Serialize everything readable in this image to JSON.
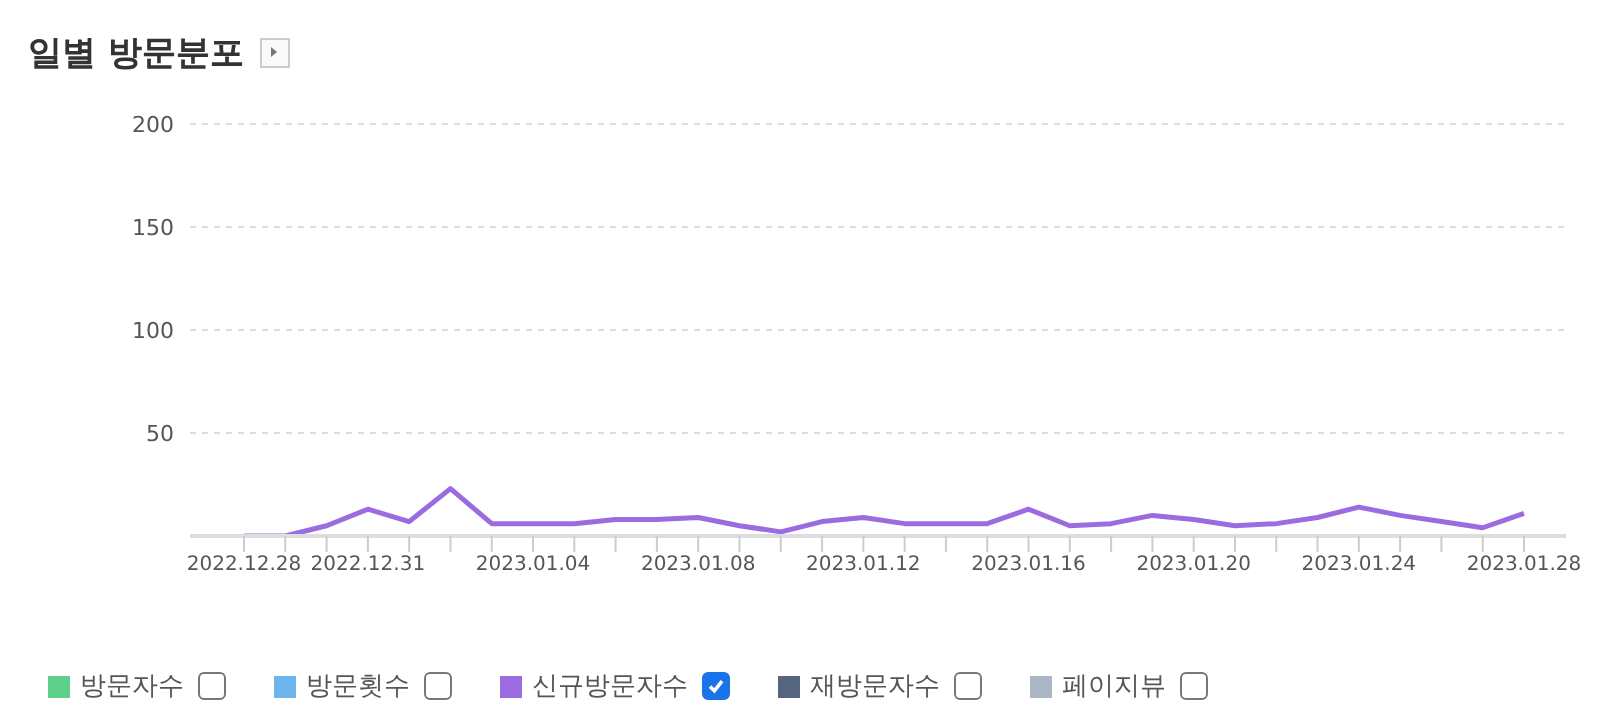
{
  "chart_data": {
    "type": "line",
    "title": "일별 방문분포",
    "categories": [
      "2022.12.28",
      null,
      null,
      "2022.12.31",
      null,
      null,
      null,
      "2023.01.04",
      null,
      null,
      null,
      "2023.01.08",
      null,
      null,
      null,
      "2023.01.12",
      null,
      null,
      null,
      "2023.01.16",
      null,
      null,
      null,
      "2023.01.20",
      null,
      null,
      null,
      "2023.01.24",
      null,
      null,
      null,
      "2023.01.28"
    ],
    "series": [
      {
        "name": "방문자수",
        "color": "#5dcf88",
        "values": [
          null,
          null,
          null,
          null,
          null,
          null,
          null,
          null,
          null,
          null,
          null,
          null,
          null,
          null,
          null,
          null,
          null,
          null,
          null,
          null,
          null,
          null,
          null,
          null,
          null,
          null,
          null,
          null,
          null,
          null,
          null,
          null
        ]
      },
      {
        "name": "방문횟수",
        "color": "#6cb4ee",
        "values": [
          null,
          null,
          null,
          null,
          null,
          null,
          null,
          null,
          null,
          null,
          null,
          null,
          null,
          null,
          null,
          null,
          null,
          null,
          null,
          null,
          null,
          null,
          null,
          null,
          null,
          null,
          null,
          null,
          null,
          null,
          null,
          null
        ]
      },
      {
        "name": "신규방문자수",
        "color": "#9b6be0",
        "values": [
          0,
          0,
          5,
          13,
          7,
          23,
          6,
          6,
          6,
          8,
          8,
          9,
          5,
          2,
          7,
          9,
          6,
          6,
          6,
          13,
          5,
          6,
          10,
          8,
          5,
          6,
          9,
          14,
          10,
          7,
          4,
          11
        ]
      },
      {
        "name": "재방문자수",
        "color": "#56657f",
        "values": [
          null,
          null,
          null,
          null,
          null,
          null,
          null,
          null,
          null,
          null,
          null,
          null,
          null,
          null,
          null,
          null,
          null,
          null,
          null,
          null,
          null,
          null,
          null,
          null,
          null,
          null,
          null,
          null,
          null,
          null,
          null,
          null
        ]
      },
      {
        "name": "페이지뷰",
        "color": "#aab5c5",
        "values": [
          null,
          null,
          null,
          null,
          null,
          null,
          null,
          null,
          null,
          null,
          null,
          null,
          null,
          null,
          null,
          null,
          null,
          null,
          null,
          null,
          null,
          null,
          null,
          null,
          null,
          null,
          null,
          null,
          null,
          null,
          null,
          null
        ]
      }
    ],
    "ylim": [
      0,
      200
    ],
    "yticks": [
      50,
      100,
      150,
      200
    ],
    "grid": "y",
    "legend": "bottom",
    "marker": "none",
    "line_style": "solid"
  }
}
